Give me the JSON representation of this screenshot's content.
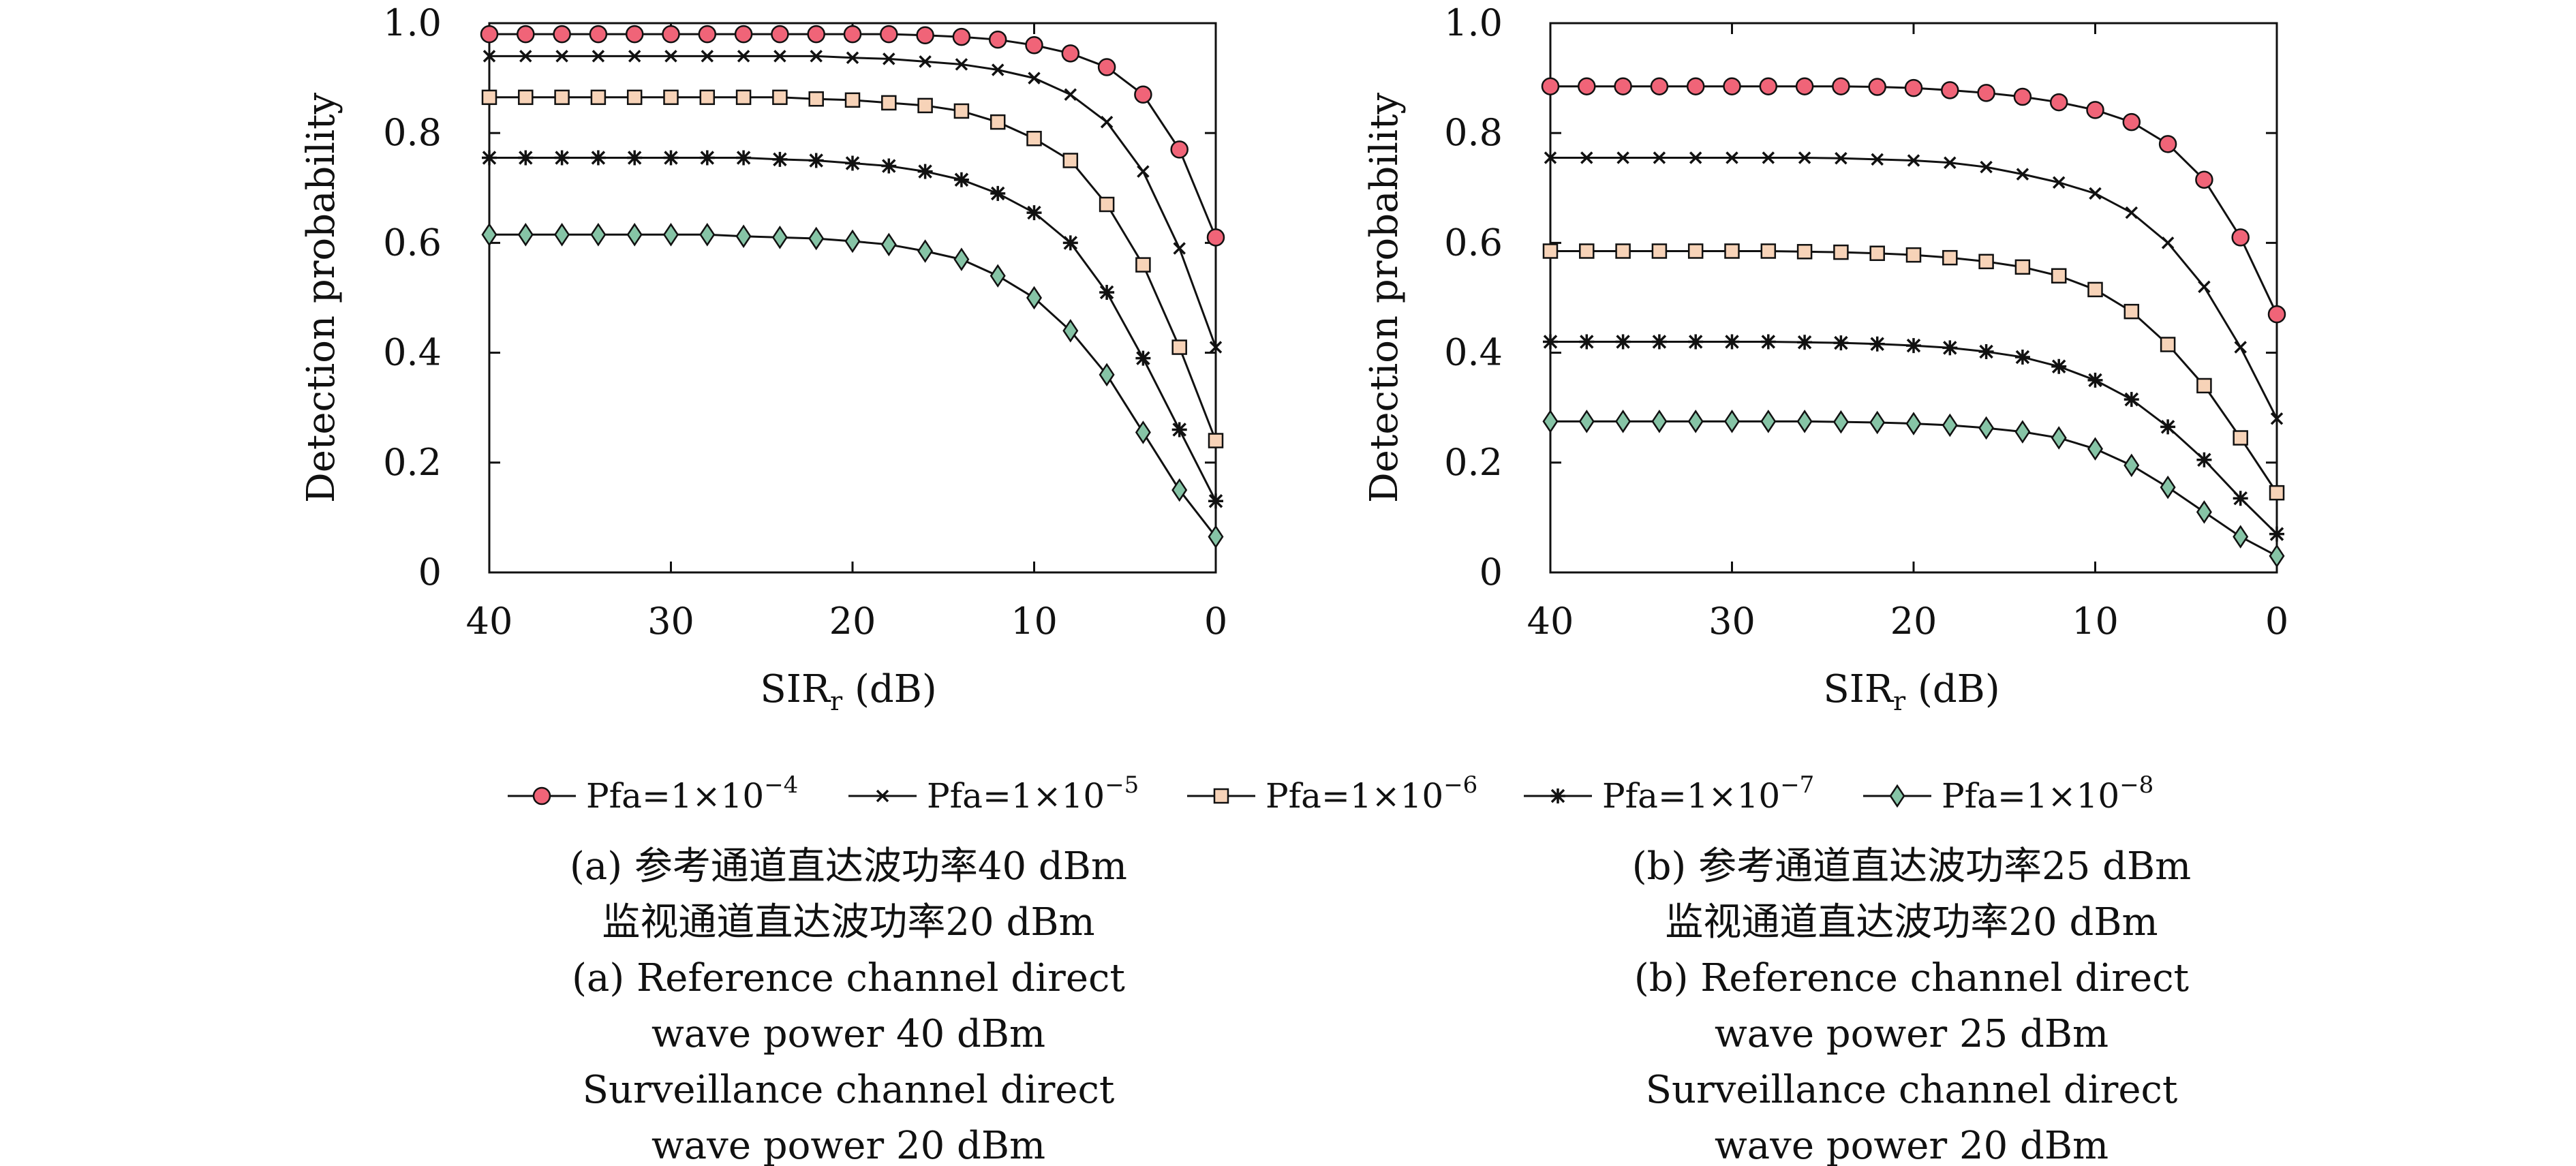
{
  "colors": {
    "pfa4": "#f06478",
    "pfa5": "#111111",
    "pfa6": "#f7d3b8",
    "pfa7": "#111111",
    "pfa8": "#86c4a6"
  },
  "legend": [
    {
      "text": "Pfa=1×10",
      "exp": "−4"
    },
    {
      "text": "Pfa=1×10",
      "exp": "−5"
    },
    {
      "text": "Pfa=1×10",
      "exp": "−6"
    },
    {
      "text": "Pfa=1×10",
      "exp": "−7"
    },
    {
      "text": "Pfa=1×10",
      "exp": "−8"
    }
  ],
  "chart_data": [
    {
      "type": "line",
      "panel": "a",
      "xlabel": "SIR",
      "xlabel_sub": "r",
      "xlabel_unit": "(dB)",
      "ylabel": "Detection probability",
      "xlim": [
        40,
        0
      ],
      "ylim": [
        0,
        1.0
      ],
      "xticks": [
        "40",
        "30",
        "20",
        "10",
        "0"
      ],
      "yticks": [
        "0",
        "0.2",
        "0.4",
        "0.6",
        "0.8",
        "1.0"
      ],
      "x": [
        40,
        38,
        36,
        34,
        32,
        30,
        28,
        26,
        24,
        22,
        20,
        18,
        16,
        14,
        12,
        10,
        8,
        6,
        4,
        2,
        0
      ],
      "series": [
        {
          "name": "Pfa=1×10−4",
          "marker": "circle",
          "values": [
            0.98,
            0.98,
            0.98,
            0.98,
            0.98,
            0.98,
            0.98,
            0.98,
            0.98,
            0.98,
            0.98,
            0.98,
            0.978,
            0.975,
            0.97,
            0.96,
            0.945,
            0.92,
            0.87,
            0.77,
            0.61
          ]
        },
        {
          "name": "Pfa=1×10−5",
          "marker": "x",
          "values": [
            0.94,
            0.94,
            0.94,
            0.94,
            0.94,
            0.94,
            0.94,
            0.94,
            0.94,
            0.94,
            0.937,
            0.935,
            0.93,
            0.925,
            0.915,
            0.9,
            0.87,
            0.82,
            0.73,
            0.59,
            0.41
          ]
        },
        {
          "name": "Pfa=1×10−6",
          "marker": "square",
          "values": [
            0.865,
            0.865,
            0.865,
            0.865,
            0.865,
            0.865,
            0.865,
            0.865,
            0.865,
            0.862,
            0.86,
            0.855,
            0.85,
            0.84,
            0.82,
            0.79,
            0.75,
            0.67,
            0.56,
            0.41,
            0.24
          ]
        },
        {
          "name": "Pfa=1×10−7",
          "marker": "star",
          "values": [
            0.755,
            0.755,
            0.755,
            0.755,
            0.755,
            0.755,
            0.755,
            0.755,
            0.752,
            0.75,
            0.745,
            0.74,
            0.73,
            0.715,
            0.69,
            0.655,
            0.6,
            0.51,
            0.39,
            0.26,
            0.13
          ]
        },
        {
          "name": "Pfa=1×10−8",
          "marker": "diamond",
          "values": [
            0.615,
            0.615,
            0.615,
            0.615,
            0.615,
            0.615,
            0.615,
            0.612,
            0.61,
            0.608,
            0.603,
            0.597,
            0.585,
            0.57,
            0.54,
            0.5,
            0.44,
            0.36,
            0.255,
            0.15,
            0.065
          ]
        }
      ]
    },
    {
      "type": "line",
      "panel": "b",
      "xlabel": "SIR",
      "xlabel_sub": "r",
      "xlabel_unit": "(dB)",
      "ylabel": "Detection probability",
      "xlim": [
        40,
        0
      ],
      "ylim": [
        0,
        1.0
      ],
      "xticks": [
        "40",
        "30",
        "20",
        "10",
        "0"
      ],
      "yticks": [
        "0",
        "0.2",
        "0.4",
        "0.6",
        "0.8",
        "1.0"
      ],
      "x": [
        40,
        38,
        36,
        34,
        32,
        30,
        28,
        26,
        24,
        22,
        20,
        18,
        16,
        14,
        12,
        10,
        8,
        6,
        4,
        2,
        0
      ],
      "series": [
        {
          "name": "Pfa=1×10−4",
          "marker": "circle",
          "values": [
            0.885,
            0.885,
            0.885,
            0.885,
            0.885,
            0.885,
            0.885,
            0.885,
            0.885,
            0.884,
            0.882,
            0.878,
            0.873,
            0.866,
            0.856,
            0.842,
            0.82,
            0.78,
            0.715,
            0.61,
            0.47
          ]
        },
        {
          "name": "Pfa=1×10−5",
          "marker": "x",
          "values": [
            0.755,
            0.755,
            0.755,
            0.755,
            0.755,
            0.755,
            0.755,
            0.755,
            0.754,
            0.752,
            0.75,
            0.746,
            0.738,
            0.725,
            0.71,
            0.69,
            0.655,
            0.6,
            0.52,
            0.41,
            0.28
          ]
        },
        {
          "name": "Pfa=1×10−6",
          "marker": "square",
          "values": [
            0.585,
            0.585,
            0.585,
            0.585,
            0.585,
            0.585,
            0.585,
            0.584,
            0.583,
            0.581,
            0.578,
            0.573,
            0.566,
            0.556,
            0.54,
            0.515,
            0.475,
            0.415,
            0.34,
            0.245,
            0.145
          ]
        },
        {
          "name": "Pfa=1×10−7",
          "marker": "star",
          "values": [
            0.42,
            0.42,
            0.42,
            0.42,
            0.42,
            0.42,
            0.42,
            0.419,
            0.418,
            0.416,
            0.413,
            0.409,
            0.402,
            0.392,
            0.375,
            0.35,
            0.315,
            0.265,
            0.205,
            0.135,
            0.07
          ]
        },
        {
          "name": "Pfa=1×10−8",
          "marker": "diamond",
          "values": [
            0.275,
            0.275,
            0.275,
            0.275,
            0.275,
            0.275,
            0.275,
            0.275,
            0.274,
            0.273,
            0.271,
            0.268,
            0.263,
            0.256,
            0.245,
            0.225,
            0.195,
            0.155,
            0.11,
            0.065,
            0.03
          ]
        }
      ]
    }
  ],
  "captions": {
    "a": [
      "(a) 参考通道直达波功率40 dBm",
      "监视通道直达波功率20 dBm",
      "(a) Reference channel direct",
      "wave power 40 dBm",
      "Surveillance channel direct",
      "wave power 20 dBm"
    ],
    "b": [
      "(b) 参考通道直达波功率25 dBm",
      "监视通道直达波功率20 dBm",
      "(b) Reference channel direct",
      "wave power 25 dBm",
      "Surveillance channel direct",
      "wave power 20 dBm"
    ]
  }
}
